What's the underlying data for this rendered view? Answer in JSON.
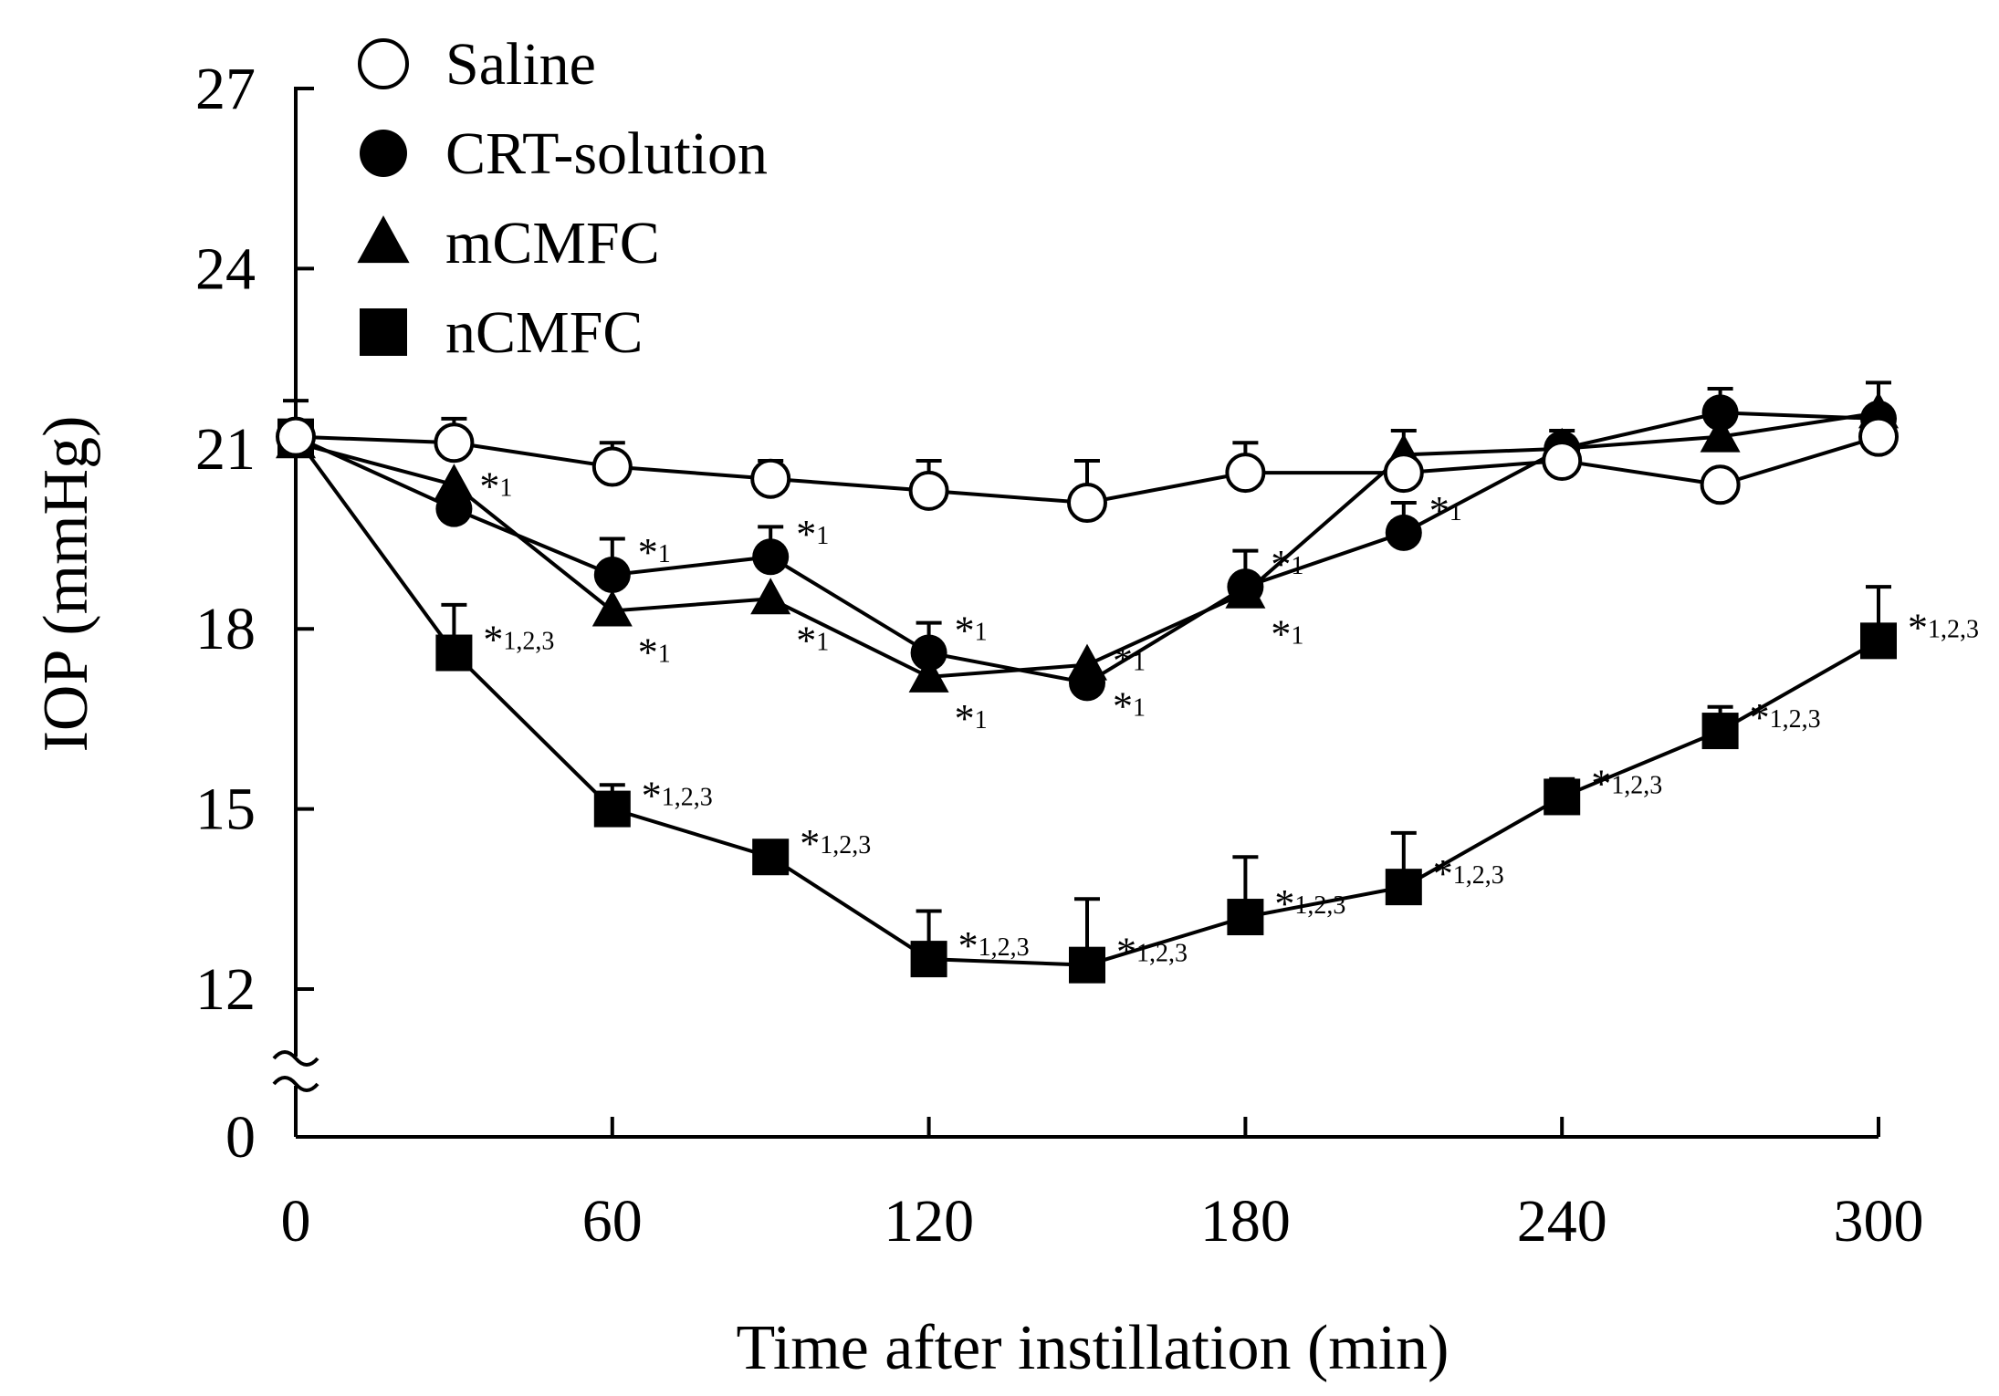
{
  "chart_data": {
    "type": "line",
    "title": "",
    "xlabel": "Time after instillation (min)",
    "ylabel": "IOP (mmHg)",
    "xlim": [
      0,
      300
    ],
    "ylim": [
      0,
      27
    ],
    "axis_break": "between 0 and 12",
    "x_ticks": [
      0,
      60,
      120,
      180,
      240,
      300
    ],
    "x_tick_labels": [
      "0",
      "60",
      "120",
      "180",
      "240",
      "300"
    ],
    "y_ticks": [
      0,
      12,
      15,
      18,
      21,
      24,
      27
    ],
    "y_tick_labels": [
      "0",
      "12",
      "15",
      "18",
      "21",
      "24",
      "27"
    ],
    "legend_position": "top-left",
    "x": [
      0,
      30,
      60,
      90,
      120,
      150,
      180,
      210,
      240,
      270,
      300
    ],
    "series": [
      {
        "name": "Saline",
        "marker": "open-circle",
        "values": [
          21.2,
          21.1,
          20.7,
          20.5,
          20.3,
          20.1,
          20.6,
          20.6,
          20.8,
          20.4,
          21.2
        ],
        "errors": [
          0.6,
          0.4,
          0.4,
          0.3,
          0.5,
          0.7,
          0.5,
          0.0,
          0.0,
          0.0,
          0.0
        ],
        "annotations": [
          "",
          "",
          "",
          "",
          "",
          "",
          "",
          "",
          "",
          "",
          ""
        ]
      },
      {
        "name": "CRT-solution",
        "marker": "filled-circle",
        "values": [
          21.2,
          20.0,
          18.9,
          19.2,
          17.6,
          17.1,
          18.7,
          19.6,
          21.0,
          21.6,
          21.5
        ],
        "errors": [
          0.0,
          0.0,
          0.6,
          0.5,
          0.5,
          0.0,
          0.6,
          0.5,
          0.0,
          0.4,
          0.0
        ],
        "annotations": [
          "",
          "*1",
          "*1",
          "*1",
          "*1",
          "*1",
          "*1",
          "*1",
          "",
          "",
          ""
        ]
      },
      {
        "name": "mCMFC",
        "marker": "filled-triangle",
        "values": [
          21.1,
          20.4,
          18.3,
          18.5,
          17.2,
          17.4,
          18.6,
          20.9,
          21.0,
          21.2,
          21.6
        ],
        "errors": [
          0.0,
          0.0,
          0.0,
          0.0,
          0.0,
          0.0,
          0.0,
          0.4,
          0.3,
          0.4,
          0.5
        ],
        "annotations": [
          "",
          "",
          "*1",
          "*1",
          "*1",
          "*1",
          "*1",
          "",
          "",
          "",
          ""
        ]
      },
      {
        "name": "nCMFC",
        "marker": "filled-square",
        "values": [
          21.2,
          17.6,
          15.0,
          14.2,
          12.5,
          12.4,
          13.2,
          13.7,
          15.2,
          16.3,
          17.8
        ],
        "errors": [
          0.0,
          0.8,
          0.4,
          0.2,
          0.8,
          1.1,
          1.0,
          0.9,
          0.3,
          0.4,
          0.9
        ],
        "annotations": [
          "",
          "*1,2,3",
          "*1,2,3",
          "*1,2,3",
          "*1,2,3",
          "*1,2,3",
          "*1,2,3",
          "*1,2,3",
          "*1,2,3",
          "*1,2,3",
          "*1,2,3"
        ]
      }
    ]
  }
}
